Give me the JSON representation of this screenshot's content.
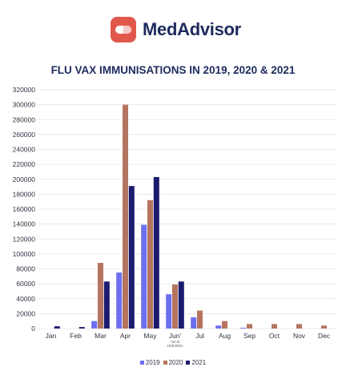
{
  "brand": {
    "name": "MedAdvisor",
    "logo_icon": "pill-capsule-icon"
  },
  "chart_data": {
    "type": "bar",
    "title": "FLU VAX IMMUNISATIONS IN 2019, 2020 & 2021",
    "categories": [
      "Jan",
      "Feb",
      "Mar",
      "Apr",
      "May",
      "Jun'",
      "Jul",
      "Aug",
      "Sep",
      "Oct",
      "Nov",
      "Dec"
    ],
    "category_notes": {
      "Jun'": "*as at 16/6/2021"
    },
    "series": [
      {
        "name": "2019",
        "color": "#6d6ff0",
        "values": [
          0,
          0,
          10000,
          75000,
          139000,
          46000,
          15000,
          4000,
          1000,
          0,
          0,
          0
        ]
      },
      {
        "name": "2020",
        "color": "#b5745f",
        "values": [
          0,
          0,
          88000,
          300000,
          172000,
          59000,
          24000,
          10000,
          6000,
          6000,
          6000,
          4000
        ]
      },
      {
        "name": "2021",
        "color": "#1a1a6e",
        "values": [
          3000,
          2000,
          63000,
          191000,
          203000,
          63000,
          null,
          null,
          null,
          null,
          null,
          null
        ]
      }
    ],
    "y_ticks": [
      0,
      20000,
      40000,
      60000,
      80000,
      100000,
      120000,
      140000,
      160000,
      180000,
      200000,
      220000,
      240000,
      260000,
      280000,
      300000,
      320000
    ],
    "ylim": [
      0,
      320000
    ],
    "grid": true,
    "legend_position": "bottom"
  }
}
